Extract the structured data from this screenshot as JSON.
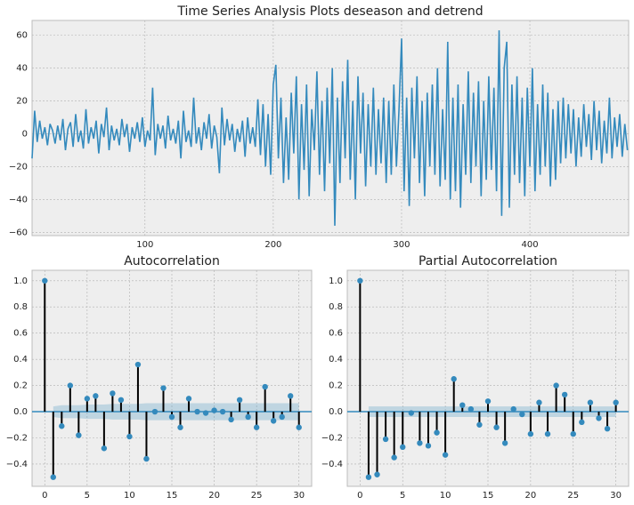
{
  "chart_data": [
    {
      "type": "line",
      "title": "Time Series Analysis Plots deseason and detrend",
      "color": "#348abd",
      "grid": true,
      "xlim": [
        12,
        477
      ],
      "ylim": [
        -62,
        69
      ],
      "xticks": [
        100,
        200,
        300,
        400
      ],
      "yticks": [
        {
          "value": -60,
          "label": "−60"
        },
        {
          "value": -40,
          "label": "−40"
        },
        {
          "value": -20,
          "label": "−20"
        },
        0,
        20,
        40,
        60
      ],
      "x": [
        12,
        14,
        16,
        18,
        20,
        22,
        24,
        26,
        28,
        30,
        32,
        34,
        36,
        38,
        40,
        42,
        44,
        46,
        48,
        50,
        52,
        54,
        56,
        58,
        60,
        62,
        64,
        66,
        68,
        70,
        72,
        74,
        76,
        78,
        80,
        82,
        84,
        86,
        88,
        90,
        92,
        94,
        96,
        98,
        100,
        102,
        104,
        106,
        108,
        110,
        112,
        114,
        116,
        118,
        120,
        122,
        124,
        126,
        128,
        130,
        132,
        134,
        136,
        138,
        140,
        142,
        144,
        146,
        148,
        150,
        152,
        154,
        156,
        158,
        160,
        162,
        164,
        166,
        168,
        170,
        172,
        174,
        176,
        178,
        180,
        182,
        184,
        186,
        188,
        190,
        192,
        194,
        196,
        198,
        200,
        202,
        204,
        206,
        208,
        210,
        212,
        214,
        216,
        218,
        220,
        222,
        224,
        226,
        228,
        230,
        232,
        234,
        236,
        238,
        240,
        242,
        244,
        246,
        248,
        250,
        252,
        254,
        256,
        258,
        260,
        262,
        264,
        266,
        268,
        270,
        272,
        274,
        276,
        278,
        280,
        282,
        284,
        286,
        288,
        290,
        292,
        294,
        296,
        298,
        300,
        302,
        304,
        306,
        308,
        310,
        312,
        314,
        316,
        318,
        320,
        322,
        324,
        326,
        328,
        330,
        332,
        334,
        336,
        338,
        340,
        342,
        344,
        346,
        348,
        350,
        352,
        354,
        356,
        358,
        360,
        362,
        364,
        366,
        368,
        370,
        372,
        374,
        376,
        378,
        380,
        382,
        384,
        386,
        388,
        390,
        392,
        394,
        396,
        398,
        400,
        402,
        404,
        406,
        408,
        410,
        412,
        414,
        416,
        418,
        420,
        422,
        424,
        426,
        428,
        430,
        432,
        434,
        436,
        438,
        440,
        442,
        444,
        446,
        448,
        450,
        452,
        454,
        456,
        458,
        460,
        462,
        464,
        466,
        468,
        470,
        472,
        474,
        476
      ],
      "values": [
        -15,
        14,
        -5,
        8,
        -3,
        4,
        -7,
        6,
        2,
        -6,
        5,
        -4,
        9,
        -10,
        3,
        7,
        -8,
        12,
        -5,
        2,
        -9,
        15,
        -6,
        4,
        -3,
        8,
        -12,
        6,
        -2,
        16,
        -10,
        5,
        -4,
        3,
        -7,
        9,
        -2,
        6,
        -11,
        4,
        -3,
        7,
        -5,
        10,
        -8,
        2,
        -4,
        28,
        -13,
        6,
        -3,
        5,
        -9,
        11,
        -4,
        3,
        -6,
        8,
        -15,
        14,
        -5,
        2,
        -8,
        22,
        -6,
        4,
        -10,
        7,
        -3,
        12,
        -9,
        5,
        -2,
        -24,
        16,
        -7,
        9,
        -4,
        6,
        -11,
        3,
        -5,
        8,
        -14,
        10,
        -6,
        4,
        -8,
        21,
        -13,
        18,
        -20,
        12,
        -25,
        30,
        42,
        -15,
        22,
        -30,
        10,
        -28,
        25,
        -12,
        35,
        -40,
        18,
        -22,
        30,
        -38,
        15,
        -10,
        38,
        -25,
        20,
        -35,
        28,
        -18,
        40,
        -56,
        22,
        -30,
        32,
        -15,
        45,
        -28,
        20,
        -40,
        35,
        -12,
        25,
        -32,
        18,
        -20,
        28,
        -25,
        15,
        -18,
        22,
        -30,
        20,
        -25,
        30,
        -20,
        15,
        58,
        -35,
        22,
        -44,
        28,
        -15,
        35,
        -30,
        20,
        -38,
        25,
        -20,
        30,
        -25,
        40,
        -32,
        15,
        -28,
        56,
        -40,
        22,
        -35,
        30,
        -45,
        18,
        -25,
        38,
        -30,
        25,
        -20,
        32,
        -38,
        20,
        -28,
        35,
        -22,
        28,
        -35,
        63,
        -50,
        40,
        56,
        -45,
        30,
        -25,
        35,
        -30,
        22,
        -38,
        28,
        -20,
        40,
        -35,
        18,
        -25,
        30,
        -20,
        25,
        -32,
        15,
        -28,
        20,
        -18,
        22,
        -15,
        18,
        -12,
        15,
        -20,
        10,
        -14,
        18,
        -8,
        12,
        -16,
        20,
        -10,
        14,
        -18,
        8,
        -12,
        22,
        -15,
        10,
        -8,
        12,
        -14,
        6,
        -10
      ]
    },
    {
      "type": "stem",
      "title": "Autocorrelation",
      "color": "#348abd",
      "grid": true,
      "xlim": [
        -1.5,
        31.5
      ],
      "ylim": [
        -0.57,
        1.08
      ],
      "xticks": [
        0,
        5,
        10,
        15,
        20,
        25,
        30
      ],
      "yticks": [
        {
          "value": -0.4,
          "label": "−0.4"
        },
        {
          "value": -0.2,
          "label": "−0.2"
        },
        {
          "value": 0,
          "label": "0.0"
        },
        0.2,
        0.4,
        0.6,
        0.8,
        {
          "value": 1,
          "label": "1.0"
        }
      ],
      "x": [
        0,
        1,
        2,
        3,
        4,
        5,
        6,
        7,
        8,
        9,
        10,
        11,
        12,
        13,
        14,
        15,
        16,
        17,
        18,
        19,
        20,
        21,
        22,
        23,
        24,
        25,
        26,
        27,
        28,
        29,
        30
      ],
      "values": [
        1.0,
        -0.5,
        -0.11,
        0.2,
        -0.18,
        0.1,
        0.12,
        -0.28,
        0.14,
        0.09,
        -0.19,
        0.36,
        -0.36,
        0.0,
        0.18,
        -0.04,
        -0.12,
        0.1,
        0.0,
        -0.01,
        0.01,
        0.0,
        -0.06,
        0.09,
        -0.04,
        -0.12,
        0.19,
        -0.07,
        -0.04,
        0.12,
        -0.12
      ],
      "confidence": [
        0.04,
        0.05,
        0.05,
        0.05,
        0.055,
        0.055,
        0.055,
        0.06,
        0.06,
        0.06,
        0.06,
        0.065,
        0.065,
        0.065,
        0.065,
        0.065,
        0.065,
        0.065,
        0.065,
        0.065,
        0.065,
        0.065,
        0.065,
        0.065,
        0.065,
        0.065,
        0.065,
        0.065,
        0.065,
        0.065
      ]
    },
    {
      "type": "stem",
      "title": "Partial Autocorrelation",
      "color": "#348abd",
      "grid": true,
      "xlim": [
        -1.5,
        31.5
      ],
      "ylim": [
        -0.57,
        1.08
      ],
      "xticks": [
        0,
        5,
        10,
        15,
        20,
        25,
        30
      ],
      "yticks": [
        {
          "value": -0.4,
          "label": "−0.4"
        },
        {
          "value": -0.2,
          "label": "−0.2"
        },
        {
          "value": 0,
          "label": "0.0"
        },
        0.2,
        0.4,
        0.6,
        0.8,
        {
          "value": 1,
          "label": "1.0"
        }
      ],
      "x": [
        0,
        1,
        2,
        3,
        4,
        5,
        6,
        7,
        8,
        9,
        10,
        11,
        12,
        13,
        14,
        15,
        16,
        17,
        18,
        19,
        20,
        21,
        22,
        23,
        24,
        25,
        26,
        27,
        28,
        29,
        30
      ],
      "values": [
        1.0,
        -0.5,
        -0.48,
        -0.21,
        -0.35,
        -0.27,
        -0.01,
        -0.24,
        -0.26,
        -0.16,
        -0.33,
        0.25,
        0.05,
        0.02,
        -0.1,
        0.08,
        -0.12,
        -0.24,
        0.02,
        -0.02,
        -0.17,
        0.07,
        -0.17,
        0.2,
        0.13,
        -0.17,
        -0.08,
        0.07,
        -0.05,
        -0.13,
        0.07
      ],
      "confidence": [
        0.04,
        0.04,
        0.04,
        0.04,
        0.04,
        0.04,
        0.04,
        0.04,
        0.04,
        0.04,
        0.04,
        0.04,
        0.04,
        0.04,
        0.04,
        0.04,
        0.04,
        0.04,
        0.04,
        0.04,
        0.04,
        0.04,
        0.04,
        0.04,
        0.04,
        0.04,
        0.04,
        0.04,
        0.04,
        0.04
      ]
    }
  ]
}
